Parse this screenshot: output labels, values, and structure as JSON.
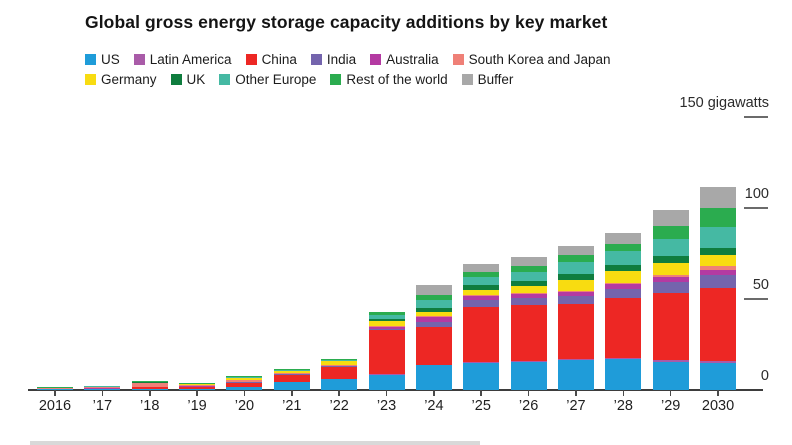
{
  "title": "Global gross energy storage capacity additions by key market",
  "axis": {
    "unit": "gigawatts",
    "right_ticks": [
      {
        "label": "150 gigawatts",
        "value": 150,
        "dash": true
      },
      {
        "label": "100",
        "value": 100,
        "dash": true
      },
      {
        "label": "50",
        "value": 50,
        "dash": true
      },
      {
        "label": "0",
        "value": 0,
        "dash": false
      }
    ]
  },
  "legend": {
    "rows": [
      [
        "US",
        "Latin America",
        "China",
        "India",
        "Australia",
        "South Korea and Japan"
      ],
      [
        "Germany",
        "UK",
        "Other Europe",
        "Rest of the world",
        "Buffer"
      ]
    ]
  },
  "chart_data": {
    "type": "bar",
    "stacked": true,
    "title": "Global gross energy storage capacity additions by key market",
    "ylabel": "gigawatts",
    "ylim": [
      0,
      150
    ],
    "yticks": [
      0,
      50,
      100,
      150
    ],
    "grid": false,
    "legend_position": "top",
    "categories": [
      "2016",
      "’17",
      "’18",
      "’19",
      "’20",
      "’21",
      "’22",
      "’23",
      "’24",
      "’25",
      "’26",
      "’27",
      "’28",
      "’29",
      "2030"
    ],
    "series": [
      {
        "name": "US",
        "color": "#1f9cd9",
        "values": [
          0.3,
          0.4,
          0.7,
          0.8,
          1.8,
          4.2,
          6.2,
          8.5,
          13.5,
          14.8,
          15.5,
          16.5,
          16.8,
          15.5,
          15.0
        ]
      },
      {
        "name": "Latin America",
        "color": "#a95ba8",
        "values": [
          0,
          0,
          0,
          0,
          0.1,
          0.1,
          0.1,
          0.2,
          0.3,
          0.4,
          0.5,
          0.6,
          0.7,
          0.8,
          1.0
        ]
      },
      {
        "name": "China",
        "color": "#ed2724",
        "values": [
          0.3,
          0.4,
          1.0,
          0.9,
          2.2,
          4.2,
          6.5,
          24.5,
          21.0,
          30.5,
          30.5,
          30.0,
          33.0,
          37.0,
          40.0
        ]
      },
      {
        "name": "India",
        "color": "#7464ad",
        "values": [
          0,
          0,
          0,
          0,
          0.1,
          0.1,
          0.2,
          0.4,
          2.8,
          3.7,
          4.0,
          4.4,
          5.2,
          6.2,
          7.2
        ]
      },
      {
        "name": "Australia",
        "color": "#b43aa2",
        "values": [
          0.1,
          0.1,
          0.2,
          0.3,
          0.3,
          0.3,
          0.3,
          1.3,
          2.4,
          2.2,
          2.3,
          2.4,
          2.5,
          2.6,
          2.6
        ]
      },
      {
        "name": "South Korea and Japan",
        "color": "#ef8077",
        "values": [
          0.3,
          0.5,
          1.8,
          0.8,
          1.2,
          0.3,
          0.3,
          0.4,
          0.5,
          0.5,
          0.6,
          0.7,
          0.9,
          1.3,
          2.2
        ]
      },
      {
        "name": "Germany",
        "color": "#f8dc11",
        "values": [
          0.2,
          0.3,
          0.4,
          0.4,
          1.0,
          1.3,
          2.3,
          2.6,
          2.6,
          3.0,
          3.6,
          5.8,
          6.2,
          6.4,
          6.2
        ]
      },
      {
        "name": "UK",
        "color": "#0f7d3e",
        "values": [
          0,
          0.2,
          0.3,
          0.2,
          0.2,
          0.2,
          0.3,
          1.2,
          1.9,
          2.6,
          2.8,
          3.2,
          3.4,
          3.6,
          4.0
        ]
      },
      {
        "name": "Other Europe",
        "color": "#45b9a3",
        "values": [
          0.1,
          0.1,
          0.1,
          0.2,
          0.3,
          0.4,
          0.5,
          2.4,
          4.3,
          4.3,
          5.2,
          6.8,
          7.6,
          9.6,
          11.6
        ]
      },
      {
        "name": "Rest of the world",
        "color": "#2bac4f",
        "values": [
          0.2,
          0.2,
          0.3,
          0.4,
          0.5,
          0.3,
          0.5,
          1.5,
          2.8,
          2.8,
          3.0,
          3.6,
          4.2,
          7.0,
          10.0
        ]
      },
      {
        "name": "Buffer",
        "color": "#a8a8a8",
        "values": [
          0,
          0,
          0.1,
          0.1,
          0.3,
          0,
          0,
          0,
          5.9,
          4.6,
          5.0,
          5.0,
          6.0,
          9.0,
          12.0
        ]
      }
    ]
  }
}
